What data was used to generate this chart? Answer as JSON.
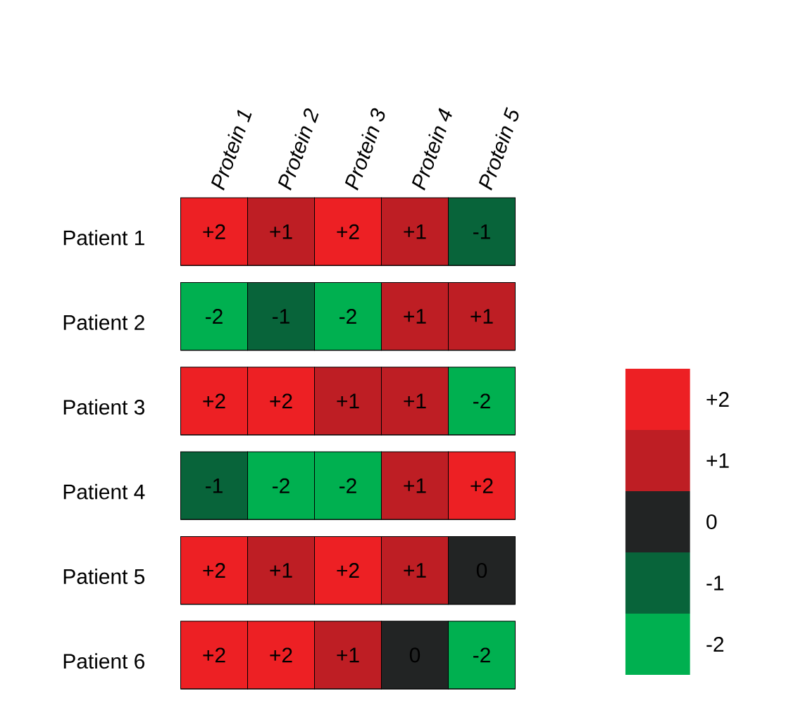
{
  "chart_data": {
    "type": "heatmap",
    "categories": [
      "Protein 1",
      "Protein 2",
      "Protein 3",
      "Protein 4",
      "Protein 5"
    ],
    "y_categories": [
      "Patient 1",
      "Patient 2",
      "Patient 3",
      "Patient 4",
      "Patient 5",
      "Patient 6"
    ],
    "cells": [
      [
        2,
        1,
        2,
        1,
        -1
      ],
      [
        -2,
        -1,
        -2,
        1,
        1
      ],
      [
        2,
        2,
        1,
        1,
        -2
      ],
      [
        -1,
        -2,
        -2,
        1,
        2
      ],
      [
        2,
        1,
        2,
        1,
        0
      ],
      [
        2,
        2,
        1,
        0,
        -2
      ]
    ],
    "cell_labels": [
      [
        "+2",
        "+1",
        "+2",
        "+1",
        "-1"
      ],
      [
        "-2",
        "-1",
        "-2",
        "+1",
        "+1"
      ],
      [
        "+2",
        "+2",
        "+1",
        "+1",
        "-2"
      ],
      [
        "-1",
        "-2",
        "-2",
        "+1",
        "+2"
      ],
      [
        "+2",
        "+1",
        "+2",
        "+1",
        "0"
      ],
      [
        "+2",
        "+2",
        "+1",
        "0",
        "-2"
      ]
    ],
    "clim": [
      -2.5,
      2.5
    ],
    "cticks": [
      {
        "value": 2,
        "label": "+2"
      },
      {
        "value": 1,
        "label": "+1"
      },
      0,
      -1,
      -2
    ],
    "colors": [
      "#ed2024",
      "#be1e24",
      "#222424",
      "#08643a",
      "#00b050"
    ]
  }
}
